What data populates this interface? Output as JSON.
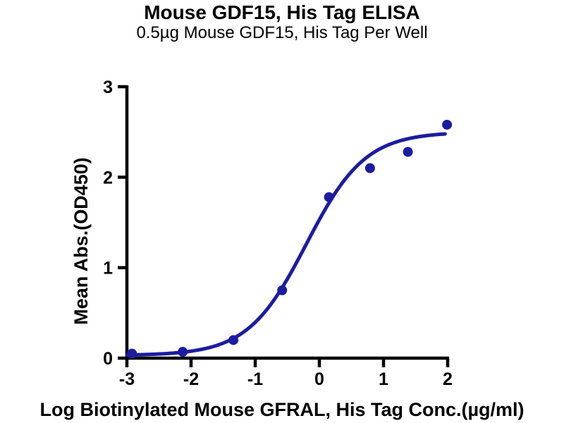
{
  "page": {
    "background_color": "#ffffff",
    "text_color": "#000000"
  },
  "chart_data": {
    "type": "scatter",
    "title": "Mouse GDF15, His Tag ELISA",
    "subtitle": "0.5µg Mouse GDF15, His Tag Per Well",
    "xlabel": "Log Biotinylated Mouse GFRAL, His Tag Conc.(µg/ml)",
    "ylabel": "Mean Abs.(OD450)",
    "xlim": [
      -3,
      2
    ],
    "ylim": [
      0,
      3
    ],
    "x_ticks": [
      -3,
      -2,
      -1,
      0,
      1,
      2
    ],
    "y_ticks": [
      0,
      1,
      2,
      3
    ],
    "grid": false,
    "legend": "none",
    "axis_color": "#000000",
    "marker_color": "#1c1ca0",
    "line_color": "#1c1ca0",
    "points": {
      "x": [
        -2.92,
        -2.13,
        -1.34,
        -0.58,
        0.15,
        0.79,
        1.38,
        1.99
      ],
      "y": [
        0.05,
        0.07,
        0.2,
        0.75,
        1.78,
        2.1,
        2.28,
        2.58
      ]
    },
    "fit_curve": {
      "model": "4PL-logistic",
      "bottom": 0.03,
      "top": 2.5,
      "log_ec50": -0.2,
      "hill": 0.95,
      "x_start": -3.0,
      "x_end": 1.98
    }
  }
}
